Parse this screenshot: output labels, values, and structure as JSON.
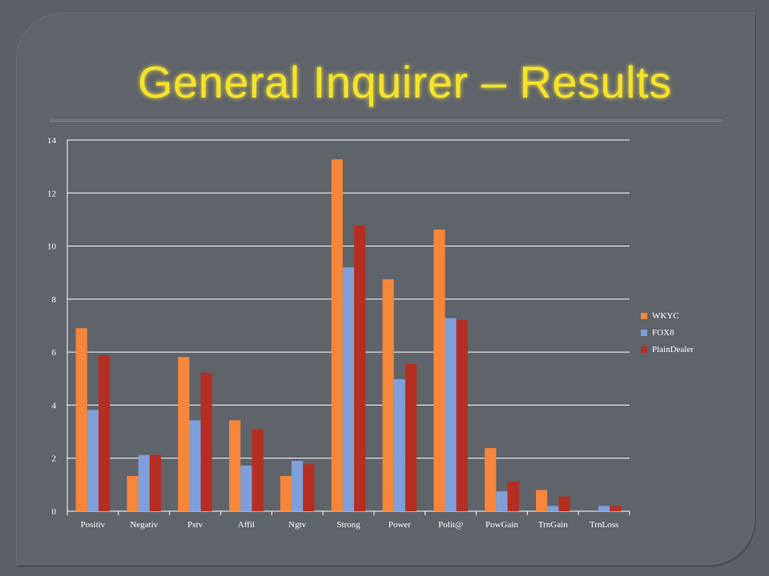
{
  "slide": {
    "title": "General Inquirer – Results"
  },
  "chart_data": {
    "type": "bar",
    "categories": [
      "Positiv",
      "Negativ",
      "Pstv",
      "Affil",
      "Ngtv",
      "Strong",
      "Power",
      "Polit@",
      "PowGain",
      "TrnGain",
      "TrnLoss"
    ],
    "series": [
      {
        "name": "WKYC",
        "color": "#f6863a",
        "values": [
          6.9,
          1.33,
          5.82,
          3.43,
          1.33,
          13.27,
          8.75,
          10.62,
          2.38,
          0.8,
          0.0
        ]
      },
      {
        "name": "FOX8",
        "color": "#7f9fdb",
        "values": [
          3.82,
          2.12,
          3.43,
          1.72,
          1.9,
          9.2,
          4.98,
          7.28,
          0.75,
          0.2,
          0.2
        ]
      },
      {
        "name": "PlainDealer",
        "color": "#b52e22",
        "values": [
          5.88,
          2.12,
          5.22,
          3.1,
          1.77,
          10.78,
          5.55,
          7.22,
          1.12,
          0.55,
          0.2
        ]
      }
    ],
    "ylim": [
      0,
      14
    ],
    "yticks": [
      0,
      2,
      4,
      6,
      8,
      10,
      12,
      14
    ],
    "grid": true,
    "legend_position": "right"
  }
}
